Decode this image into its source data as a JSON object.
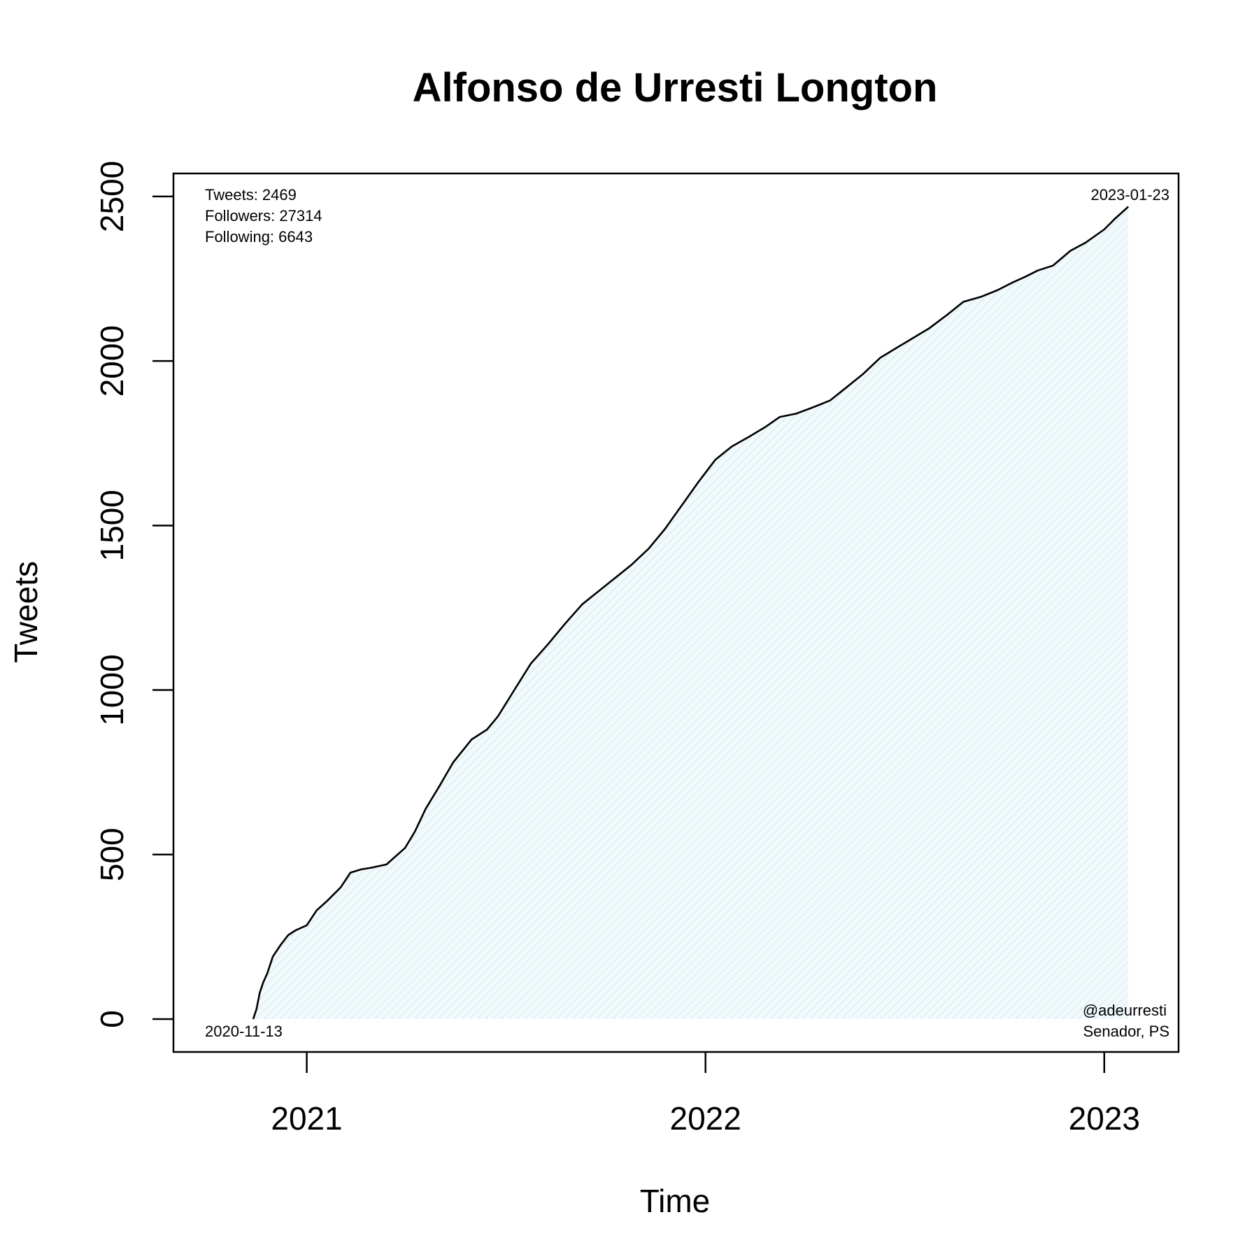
{
  "chart_data": {
    "type": "area",
    "title": "Alfonso de Urresti Longton",
    "xlabel": "Time",
    "ylabel": "Tweets",
    "xlim": [
      "2020-09-01",
      "2023-03-10"
    ],
    "ylim": [
      -100,
      2570
    ],
    "x_ticks": [
      {
        "date": "2021-01-01",
        "label": "2021"
      },
      {
        "date": "2022-01-01",
        "label": "2022"
      },
      {
        "date": "2023-01-01",
        "label": "2023"
      }
    ],
    "y_ticks": [
      {
        "value": 0,
        "label": "0"
      },
      {
        "value": 500,
        "label": "500"
      },
      {
        "value": 1000,
        "label": "1000"
      },
      {
        "value": 1500,
        "label": "1500"
      },
      {
        "value": 2000,
        "label": "2000"
      },
      {
        "value": 2500,
        "label": "2500"
      }
    ],
    "grid": false,
    "fill_color": "#e8f4f8",
    "line_color": "#000000",
    "series": [
      {
        "x": [
          "2020-11-13",
          "2020-11-16",
          "2020-11-19",
          "2020-11-22",
          "2020-11-26",
          "2020-12-01",
          "2020-12-08",
          "2020-12-15",
          "2020-12-22",
          "2021-01-01",
          "2021-01-10",
          "2021-01-20",
          "2021-02-01",
          "2021-02-10",
          "2021-02-20",
          "2021-03-01",
          "2021-03-15",
          "2021-04-01",
          "2021-04-10",
          "2021-04-20",
          "2021-05-01",
          "2021-05-15",
          "2021-06-01",
          "2021-06-15",
          "2021-06-25",
          "2021-07-10",
          "2021-07-25",
          "2021-08-10",
          "2021-08-25",
          "2021-09-10",
          "2021-09-25",
          "2021-10-10",
          "2021-10-25",
          "2021-11-10",
          "2021-11-25",
          "2021-12-10",
          "2021-12-25",
          "2022-01-10",
          "2022-01-25",
          "2022-02-10",
          "2022-02-25",
          "2022-03-10",
          "2022-03-25",
          "2022-04-10",
          "2022-04-25",
          "2022-05-10",
          "2022-05-25",
          "2022-06-10",
          "2022-06-25",
          "2022-07-10",
          "2022-07-25",
          "2022-08-10",
          "2022-08-25",
          "2022-09-10",
          "2022-09-25",
          "2022-10-10",
          "2022-10-20",
          "2022-11-01",
          "2022-11-15",
          "2022-12-01",
          "2022-12-15",
          "2023-01-01",
          "2023-01-10",
          "2023-01-23"
        ],
        "y": [
          0,
          30,
          80,
          110,
          140,
          190,
          225,
          255,
          270,
          285,
          330,
          360,
          400,
          445,
          455,
          460,
          470,
          520,
          570,
          640,
          700,
          780,
          850,
          880,
          920,
          1000,
          1080,
          1140,
          1200,
          1260,
          1300,
          1340,
          1380,
          1430,
          1490,
          1560,
          1630,
          1700,
          1740,
          1770,
          1800,
          1830,
          1840,
          1860,
          1880,
          1920,
          1960,
          2010,
          2040,
          2070,
          2100,
          2140,
          2180,
          2195,
          2215,
          2240,
          2255,
          2275,
          2290,
          2335,
          2360,
          2400,
          2430,
          2469
        ]
      }
    ]
  },
  "annotations": {
    "stats": [
      "Tweets: 2469",
      "Followers: 27314",
      "Following: 6643"
    ],
    "start_date": "2020-11-13",
    "end_date": "2023-01-23",
    "handle": "@adeurresti",
    "role": "Senador, PS"
  }
}
